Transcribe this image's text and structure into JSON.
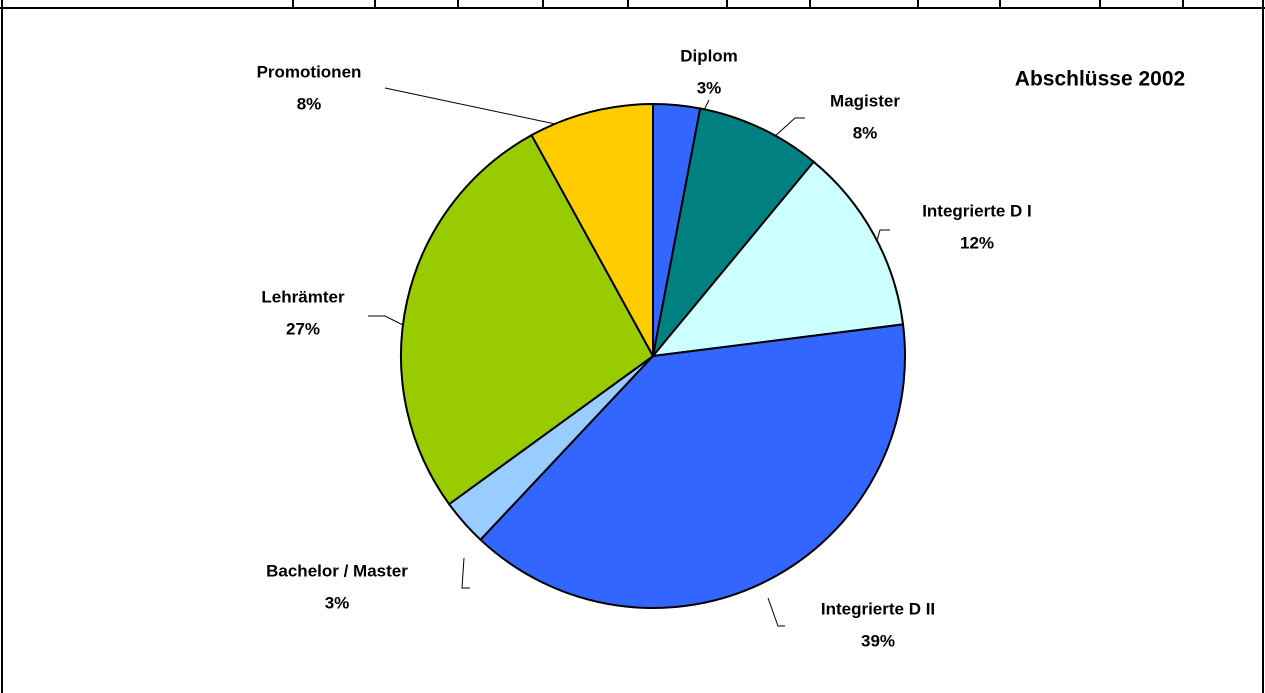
{
  "chart_data": {
    "type": "pie",
    "title": "Abschlüsse 2002",
    "categories": [
      "Diplom",
      "Magister",
      "Integrierte D I",
      "Integrierte D II",
      "Bachelor / Master",
      "Lehrämter",
      "Promotionen"
    ],
    "values": [
      3,
      8,
      12,
      39,
      3,
      27,
      8
    ],
    "value_labels": [
      "3%",
      "8%",
      "12%",
      "39%",
      "3%",
      "27%",
      "8%"
    ],
    "colors": [
      "#3366ff",
      "#008080",
      "#ccffff",
      "#3366ff",
      "#99ccff",
      "#99cc00",
      "#ffcc00"
    ]
  }
}
